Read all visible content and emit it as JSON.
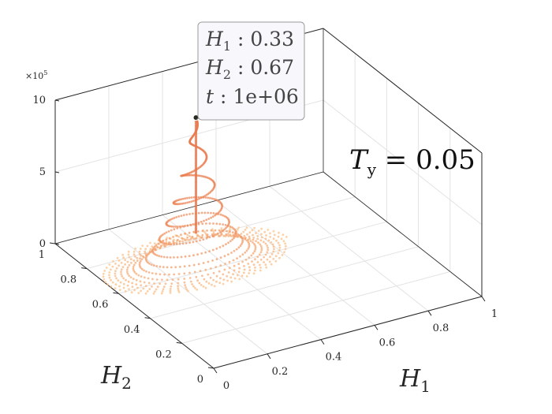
{
  "chart_data": {
    "type": "scatter3d",
    "title": "",
    "xlabel": "H",
    "xlabel_sub": "1",
    "ylabel": "H",
    "ylabel_sub": "2",
    "zlabel": "",
    "xlim": [
      0,
      1
    ],
    "ylim": [
      0,
      1
    ],
    "zlim": [
      0,
      1000000
    ],
    "x_ticks": [
      "0",
      "0.2",
      "0.4",
      "0.6",
      "0.8",
      "1"
    ],
    "y_ticks": [
      "0",
      "0.2",
      "0.4",
      "0.6",
      "0.8",
      "1"
    ],
    "z_ticks": [
      "0",
      "5",
      "10"
    ],
    "z_exponent": "×10",
    "z_exponent_power": "5",
    "grid": true,
    "annotation": {
      "symbol": "T",
      "sub": "y",
      "rest": " = 0.05"
    },
    "marker_colors": {
      "top": "#e9774c",
      "bottom": "#fed399"
    },
    "peak_point": {
      "H1": 0.33,
      "H2": 0.67,
      "t": 1000000
    },
    "spiral": {
      "center": [
        0.33,
        0.67
      ],
      "max_radius": 0.27,
      "turns": 14,
      "points": 900,
      "t_range": [
        0,
        1000000
      ]
    },
    "datatip": {
      "lines": [
        {
          "name": "H",
          "sub": "1",
          "value": " : 0.33"
        },
        {
          "name": "H",
          "sub": "2",
          "value": " : 0.67"
        },
        {
          "name": "t",
          "sub": "",
          "value": " : 1e+06"
        }
      ]
    }
  }
}
